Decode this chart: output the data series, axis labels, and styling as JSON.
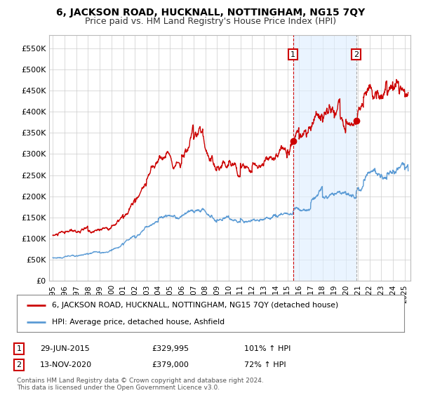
{
  "title": "6, JACKSON ROAD, HUCKNALL, NOTTINGHAM, NG15 7QY",
  "subtitle": "Price paid vs. HM Land Registry's House Price Index (HPI)",
  "ylabel_ticks": [
    "£0",
    "£50K",
    "£100K",
    "£150K",
    "£200K",
    "£250K",
    "£300K",
    "£350K",
    "£400K",
    "£450K",
    "£500K",
    "£550K"
  ],
  "ytick_values": [
    0,
    50000,
    100000,
    150000,
    200000,
    250000,
    300000,
    350000,
    400000,
    450000,
    500000,
    550000
  ],
  "ylim": [
    0,
    580000
  ],
  "xlim_start": 1994.7,
  "xlim_end": 2025.5,
  "sale1_x": 2015.49,
  "sale1_y": 329995,
  "sale2_x": 2020.87,
  "sale2_y": 379000,
  "legend_line1": "6, JACKSON ROAD, HUCKNALL, NOTTINGHAM, NG15 7QY (detached house)",
  "legend_line2": "HPI: Average price, detached house, Ashfield",
  "table_row1": [
    "1",
    "29-JUN-2015",
    "£329,995",
    "101% ↑ HPI"
  ],
  "table_row2": [
    "2",
    "13-NOV-2020",
    "£379,000",
    "72% ↑ HPI"
  ],
  "footer": "Contains HM Land Registry data © Crown copyright and database right 2024.\nThis data is licensed under the Open Government Licence v3.0.",
  "red_color": "#cc0000",
  "blue_color": "#5b9bd5",
  "shade_color": "#ddeeff",
  "bg_color": "#ffffff",
  "plot_bg": "#ffffff",
  "grid_color": "#cccccc",
  "title_fontsize": 10,
  "subtitle_fontsize": 9
}
